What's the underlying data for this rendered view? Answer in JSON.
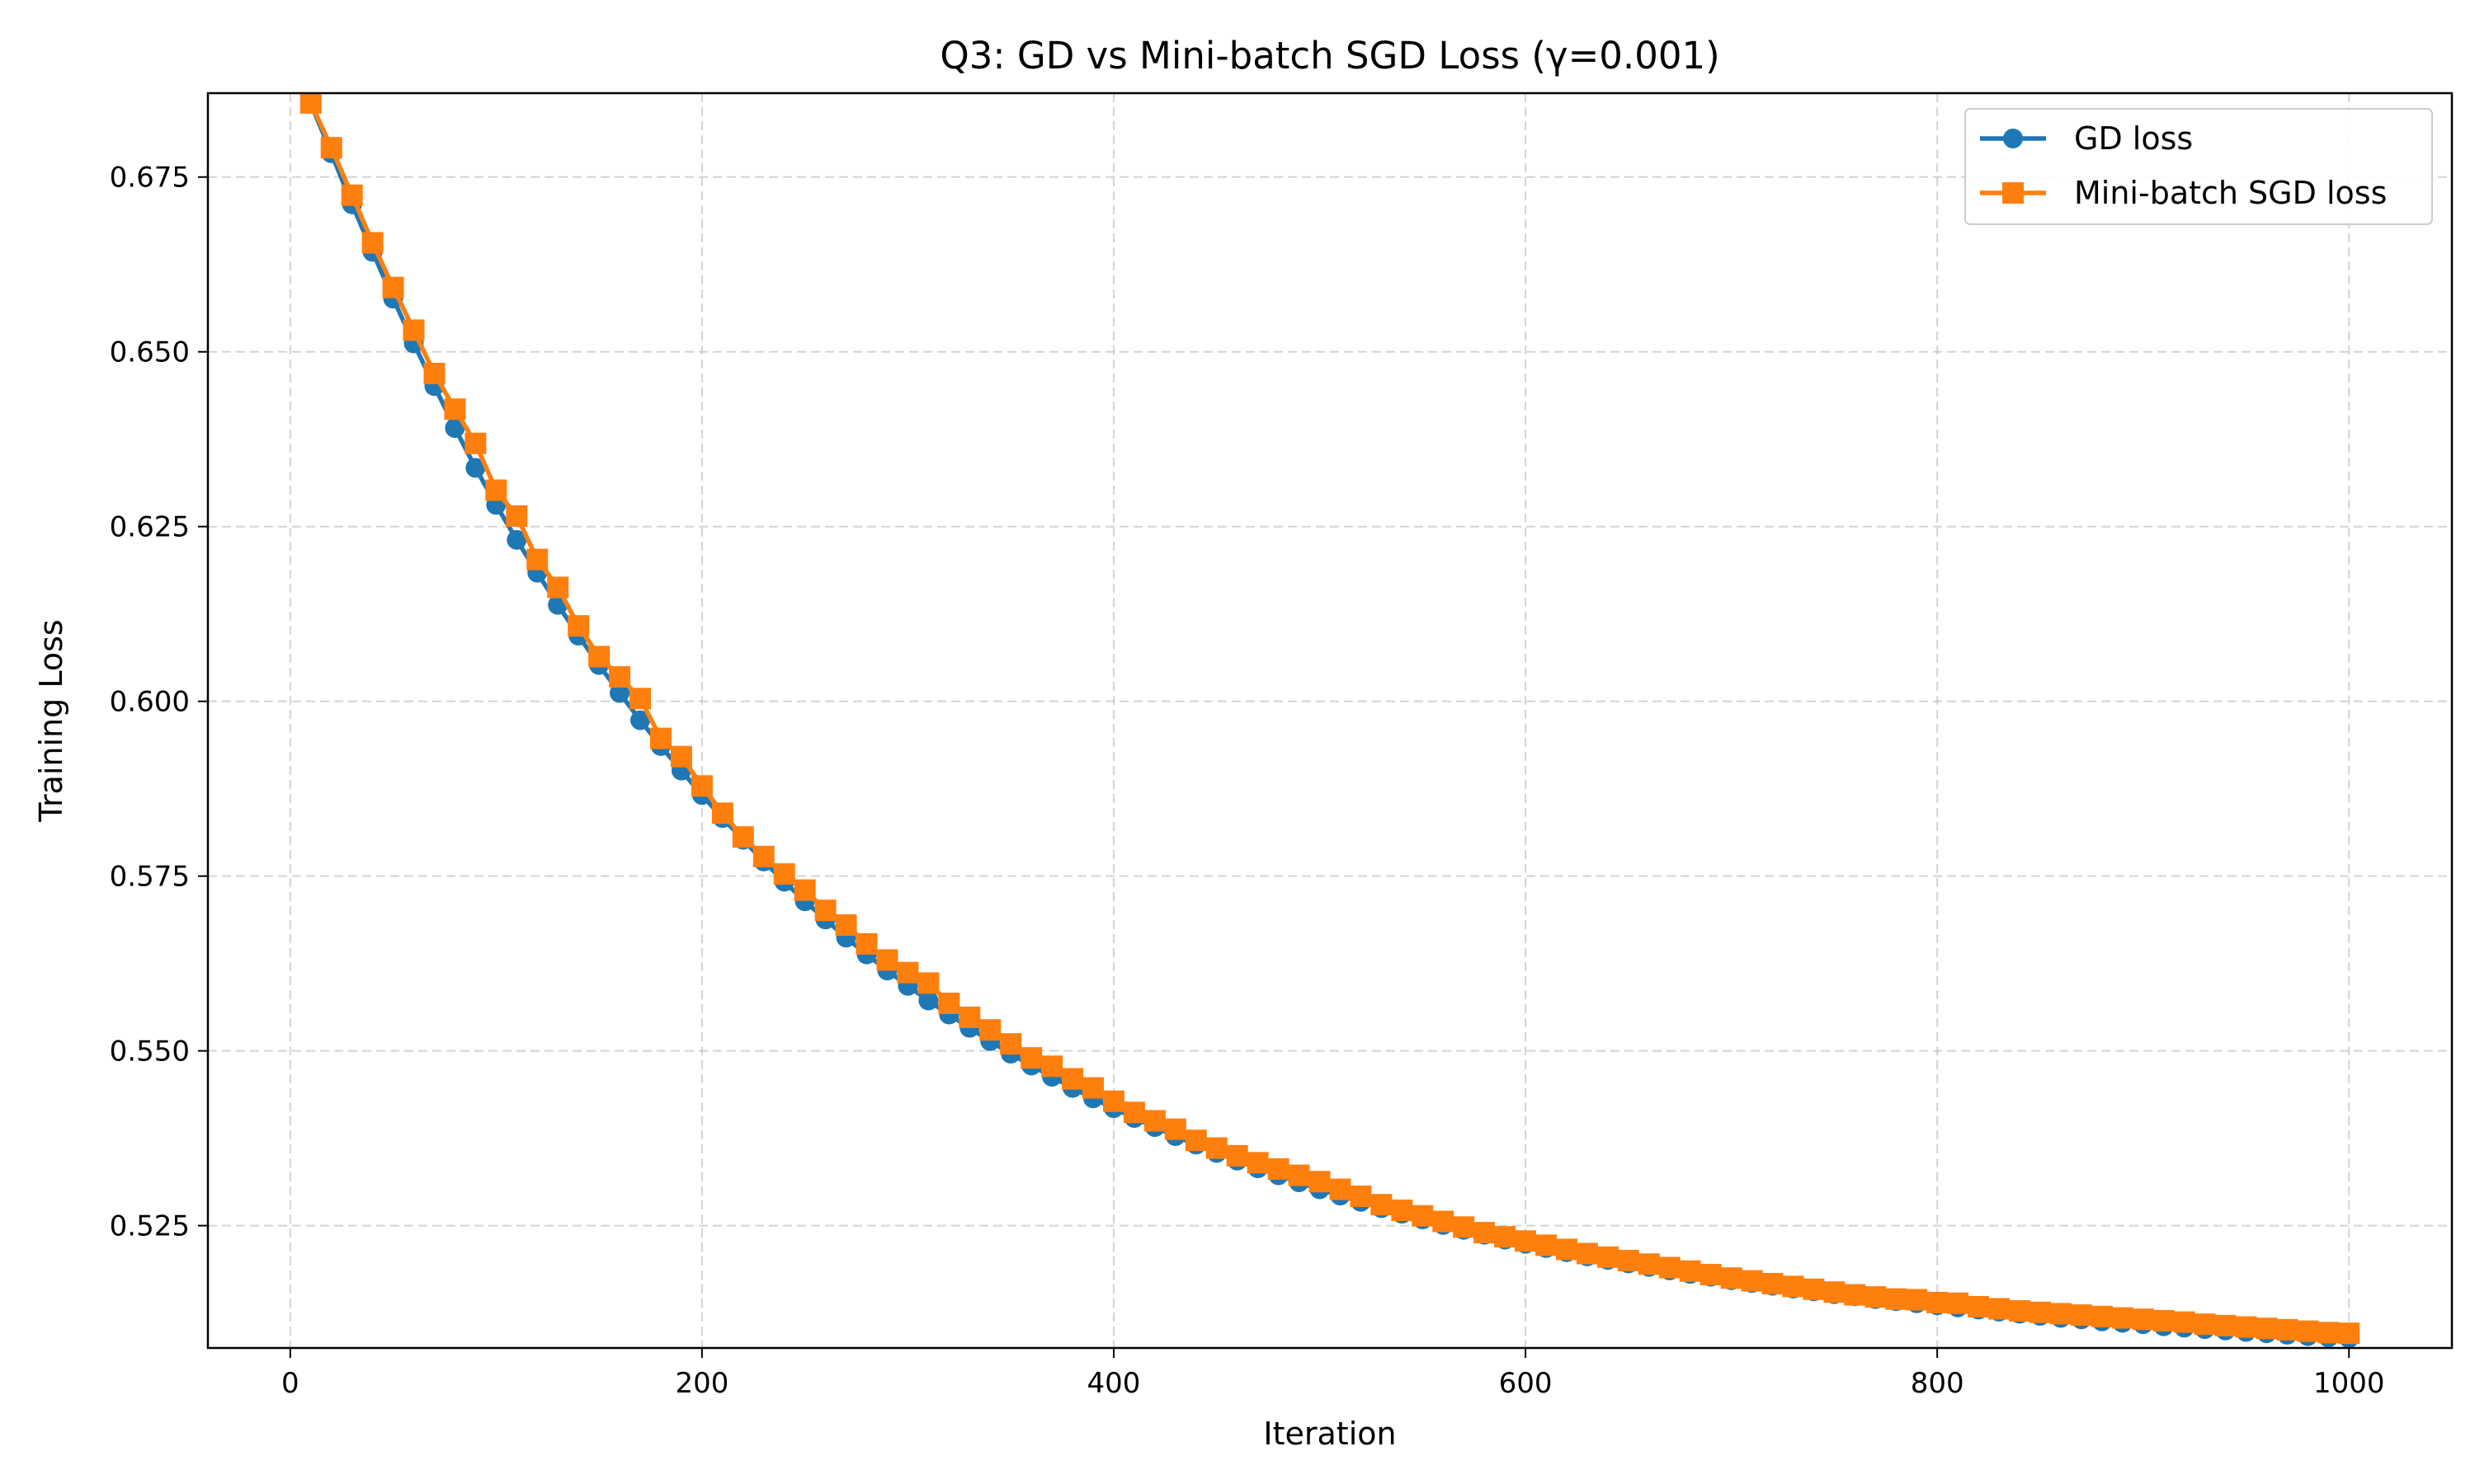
{
  "chart_data": {
    "type": "line",
    "title": "Q3: GD vs Mini-batch SGD Loss (γ=0.001)",
    "xlabel": "Iteration",
    "ylabel": "Training Loss",
    "xlim": [
      -40,
      1050
    ],
    "ylim": [
      0.5075,
      0.687
    ],
    "xticks": [
      0,
      200,
      400,
      600,
      800,
      1000
    ],
    "xtick_labels": [
      "0",
      "200",
      "400",
      "600",
      "800",
      "1000"
    ],
    "yticks": [
      0.525,
      0.55,
      0.575,
      0.6,
      0.625,
      0.65,
      0.675
    ],
    "ytick_labels": [
      "0.525",
      "0.550",
      "0.575",
      "0.600",
      "0.625",
      "0.650",
      "0.675"
    ],
    "grid": true,
    "legend_position": "top-right",
    "x": [
      10,
      20,
      30,
      40,
      50,
      60,
      70,
      80,
      90,
      100,
      110,
      120,
      130,
      140,
      150,
      160,
      170,
      180,
      190,
      200,
      210,
      220,
      230,
      240,
      250,
      260,
      270,
      280,
      290,
      300,
      310,
      320,
      330,
      340,
      350,
      360,
      370,
      380,
      390,
      400,
      410,
      420,
      430,
      440,
      450,
      460,
      470,
      480,
      490,
      500,
      510,
      520,
      530,
      540,
      550,
      560,
      570,
      580,
      590,
      600,
      610,
      620,
      630,
      640,
      650,
      660,
      670,
      680,
      690,
      700,
      710,
      720,
      730,
      740,
      750,
      760,
      770,
      780,
      790,
      800,
      810,
      820,
      830,
      840,
      850,
      860,
      870,
      880,
      890,
      900,
      910,
      920,
      930,
      940,
      950,
      960,
      970,
      980,
      990,
      1000
    ],
    "series": [
      {
        "name": "GD loss",
        "color": "#1f77b4",
        "marker": "circle",
        "values": [
          0.6855,
          0.6784,
          0.6711,
          0.6643,
          0.6576,
          0.6512,
          0.6451,
          0.6391,
          0.6334,
          0.6281,
          0.6231,
          0.6184,
          0.6138,
          0.6094,
          0.6052,
          0.6012,
          0.5973,
          0.5936,
          0.5901,
          0.5866,
          0.5833,
          0.5802,
          0.5771,
          0.5742,
          0.5714,
          0.5688,
          0.5662,
          0.5638,
          0.5615,
          0.5593,
          0.5572,
          0.5552,
          0.5533,
          0.5514,
          0.5496,
          0.5479,
          0.5463,
          0.5447,
          0.5432,
          0.5418,
          0.5404,
          0.5391,
          0.5378,
          0.5366,
          0.5354,
          0.5343,
          0.5332,
          0.5322,
          0.5312,
          0.5302,
          0.5293,
          0.5284,
          0.5275,
          0.5267,
          0.5259,
          0.5251,
          0.5244,
          0.5237,
          0.523,
          0.5224,
          0.5218,
          0.5212,
          0.5206,
          0.5201,
          0.5196,
          0.5191,
          0.5186,
          0.5181,
          0.5177,
          0.5172,
          0.5168,
          0.5164,
          0.516,
          0.5156,
          0.5152,
          0.5149,
          0.5145,
          0.5142,
          0.5139,
          0.5136,
          0.5133,
          0.513,
          0.5127,
          0.5124,
          0.5121,
          0.5118,
          0.5116,
          0.5113,
          0.5111,
          0.5109,
          0.5106,
          0.5104,
          0.5102,
          0.51,
          0.5098,
          0.5096,
          0.5094,
          0.5092,
          0.509,
          0.5089
        ]
      },
      {
        "name": "Mini-batch SGD loss",
        "color": "#ff7f0e",
        "marker": "square",
        "values": [
          0.6856,
          0.6792,
          0.6724,
          0.6656,
          0.6592,
          0.6531,
          0.6469,
          0.6418,
          0.6369,
          0.6302,
          0.6265,
          0.6203,
          0.6163,
          0.6108,
          0.6064,
          0.6035,
          0.6004,
          0.5947,
          0.5921,
          0.5879,
          0.584,
          0.5806,
          0.5778,
          0.5753,
          0.573,
          0.5701,
          0.568,
          0.5653,
          0.563,
          0.5612,
          0.5597,
          0.5568,
          0.5548,
          0.553,
          0.551,
          0.549,
          0.5478,
          0.546,
          0.5447,
          0.5428,
          0.5412,
          0.54,
          0.5388,
          0.5372,
          0.5361,
          0.535,
          0.534,
          0.5331,
          0.5322,
          0.5313,
          0.5302,
          0.5292,
          0.528,
          0.5272,
          0.5264,
          0.5256,
          0.5248,
          0.524,
          0.5234,
          0.5228,
          0.5222,
          0.5216,
          0.521,
          0.5205,
          0.52,
          0.5195,
          0.519,
          0.5185,
          0.518,
          0.5175,
          0.5171,
          0.5167,
          0.5163,
          0.5159,
          0.5155,
          0.5151,
          0.5148,
          0.5145,
          0.5144,
          0.514,
          0.5139,
          0.5134,
          0.5131,
          0.5128,
          0.5126,
          0.5124,
          0.5122,
          0.512,
          0.5118,
          0.5116,
          0.5114,
          0.5112,
          0.5109,
          0.5107,
          0.5105,
          0.5103,
          0.5101,
          0.5099,
          0.5097,
          0.5096
        ]
      }
    ]
  }
}
